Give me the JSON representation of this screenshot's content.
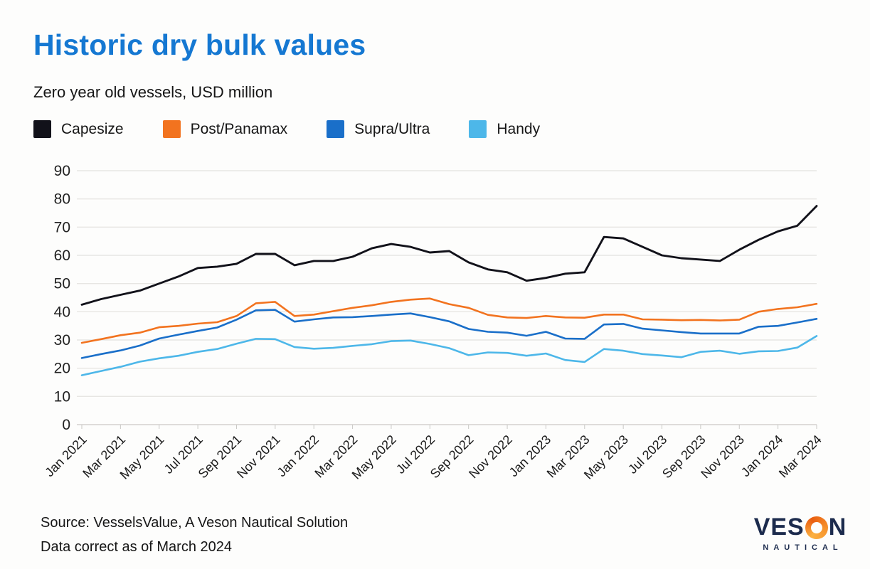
{
  "header": {
    "title": "Historic dry bulk values",
    "subtitle": "Zero year old vessels, USD million"
  },
  "chart_data": {
    "type": "line",
    "title": "Historic dry bulk values",
    "subtitle": "Zero year old vessels, USD million",
    "x_resolution": "monthly",
    "x_count": 39,
    "x_label_step": 2,
    "x_labels": [
      "Jan 2021",
      "Mar 2021",
      "May 2021",
      "Jul 2021",
      "Sep 2021",
      "Nov 2021",
      "Jan 2022",
      "Mar 2022",
      "May 2022",
      "Jul 2022",
      "Sep 2022",
      "Nov 2022",
      "Jan 2023",
      "Mar 2023",
      "May 2023",
      "Jul 2023",
      "Sep 2023",
      "Nov 2023",
      "Jan 2024",
      "Mar 2024"
    ],
    "ylim": [
      0,
      90
    ],
    "yticks": [
      0,
      10,
      20,
      30,
      40,
      50,
      60,
      70,
      80,
      90
    ],
    "grid": true,
    "legend_position": "top",
    "series": [
      {
        "name": "Capesize",
        "color": "#12121a",
        "values": [
          42.5,
          44.5,
          46,
          47.5,
          50,
          52.5,
          55.5,
          56,
          57,
          60.5,
          60.5,
          56.5,
          58,
          58,
          59.5,
          62.5,
          64,
          63,
          61,
          61.5,
          57.5,
          55,
          54,
          51,
          52,
          53.5,
          54,
          66.5,
          66,
          63,
          60,
          59,
          58.5,
          58,
          62,
          65.5,
          68.5,
          70.5,
          77.5
        ]
      },
      {
        "name": "Post/Panamax",
        "color": "#f2731f",
        "values": [
          29,
          30.3,
          31.7,
          32.6,
          34.5,
          35,
          35.8,
          36.3,
          38.5,
          43,
          43.5,
          38.5,
          39,
          40.2,
          41.4,
          42.3,
          43.5,
          44.3,
          44.7,
          42.7,
          41.4,
          38.9,
          38,
          37.8,
          38.5,
          38,
          37.9,
          39,
          39,
          37.3,
          37.2,
          37,
          37.1,
          36.9,
          37.2,
          40,
          41,
          41.6,
          42.8
        ]
      },
      {
        "name": "Supra/Ultra",
        "color": "#1a6fc9",
        "values": [
          23.6,
          25,
          26.3,
          28,
          30.5,
          31.9,
          33.2,
          34.4,
          37.2,
          40.5,
          40.7,
          36.5,
          37.3,
          38,
          38.1,
          38.5,
          39,
          39.4,
          38.1,
          36.6,
          33.9,
          32.9,
          32.6,
          31.5,
          32.9,
          30.5,
          30.4,
          35.5,
          35.7,
          34,
          33.4,
          32.8,
          32.3,
          32.3,
          32.3,
          34.7,
          35,
          36.2,
          37.5
        ]
      },
      {
        "name": "Handy",
        "color": "#4db7e9",
        "values": [
          17.5,
          19,
          20.5,
          22.3,
          23.5,
          24.4,
          25.8,
          26.8,
          28.7,
          30.4,
          30.3,
          27.5,
          26.9,
          27.2,
          27.9,
          28.5,
          29.6,
          29.8,
          28.6,
          27.1,
          24.6,
          25.6,
          25.4,
          24.4,
          25.2,
          22.9,
          22.2,
          26.8,
          26.2,
          25,
          24.5,
          23.9,
          25.8,
          26.2,
          25.1,
          26,
          26.1,
          27.3,
          31.4
        ]
      }
    ]
  },
  "footer": {
    "source_line1": "Source: VesselsValue, A Veson Nautical Solution",
    "source_line2": "Data correct as of March 2024"
  },
  "logo": {
    "word_start": "VES",
    "word_end": "N",
    "subtext": "NAUTICAL"
  }
}
